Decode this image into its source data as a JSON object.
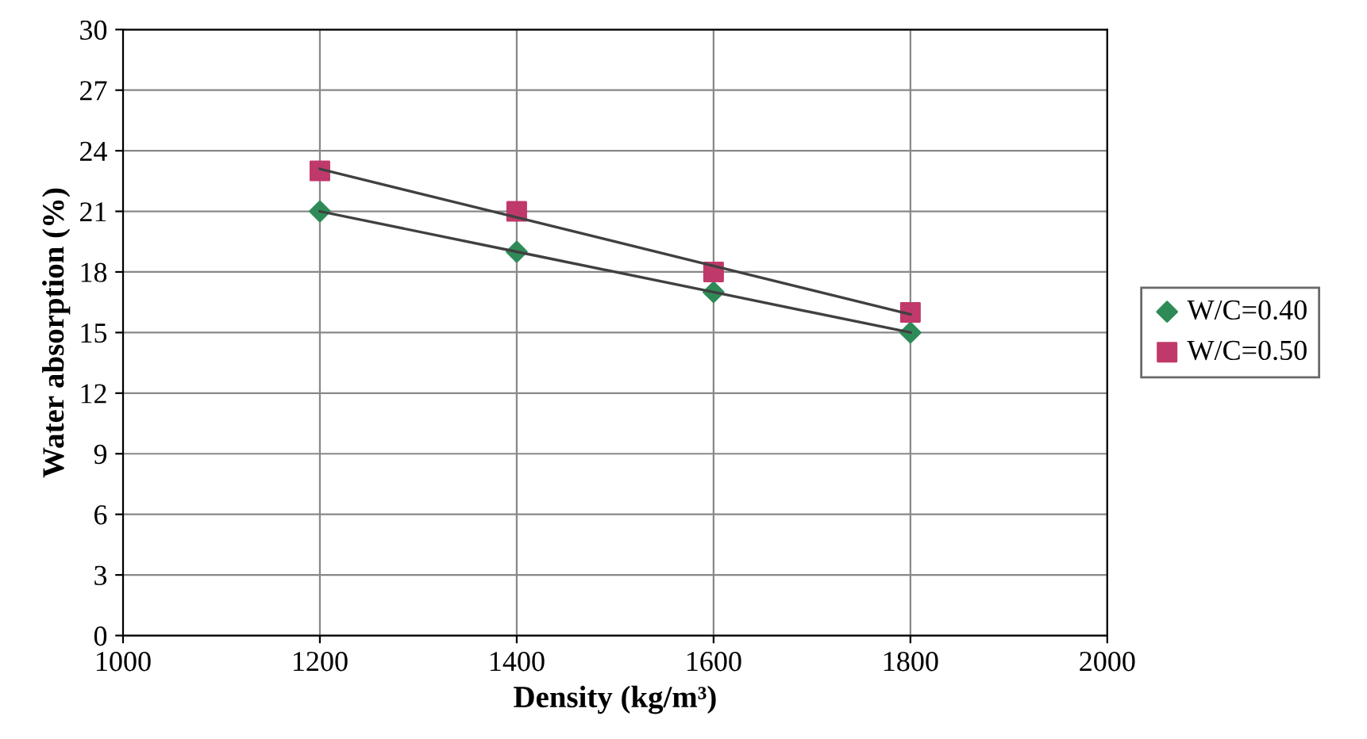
{
  "chart_data": {
    "type": "scatter",
    "xlabel": "Density (kg/m³)",
    "ylabel": "Water absorption (%)",
    "x": [
      1200,
      1400,
      1600,
      1800
    ],
    "series": [
      {
        "name": "W/C=0.40",
        "color": "#2e8b57",
        "marker": "diamond",
        "values": [
          21,
          19,
          17,
          15
        ]
      },
      {
        "name": "W/C=0.50",
        "color": "#c0396b",
        "marker": "square",
        "values": [
          23,
          21,
          18,
          16
        ]
      },
      {
        "type": "line",
        "color": "#404040",
        "marker": "none",
        "values": [
          21,
          19,
          17,
          15
        ]
      },
      {
        "type": "line",
        "color": "#404040",
        "marker": "none",
        "values": [
          23.1,
          20.7,
          18.3,
          15.9
        ]
      }
    ],
    "xlim": [
      1000,
      2000
    ],
    "xticks": [
      1000,
      1200,
      1400,
      1600,
      1800,
      2000
    ],
    "ylim": [
      0,
      30
    ],
    "yticks": [
      0,
      3,
      6,
      9,
      12,
      15,
      18,
      21,
      24,
      27,
      30
    ],
    "grid": true,
    "legend": "right"
  }
}
